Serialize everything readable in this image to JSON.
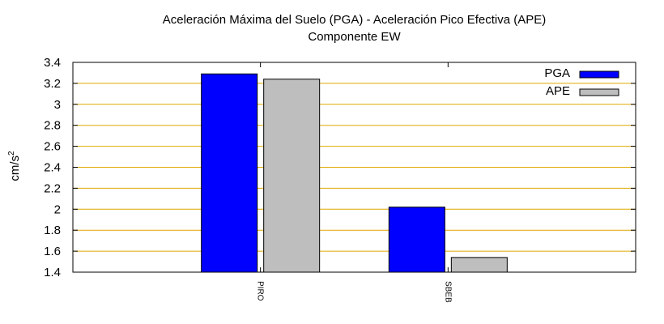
{
  "chart_data": {
    "type": "bar",
    "title": "Aceleración Máxima del Suelo (PGA) -  Aceleración Pico Efectiva (APE)",
    "subtitle": "Componente EW",
    "ylabel": "cm/s",
    "ylabel_superscript": "2",
    "xlabel": "",
    "categories": [
      "PIRO",
      "SBEB"
    ],
    "series": [
      {
        "name": "PGA",
        "values": [
          3.29,
          2.02
        ],
        "color": "#0000ff"
      },
      {
        "name": "APE",
        "values": [
          3.24,
          1.54
        ],
        "color": "#bebebe"
      }
    ],
    "ylim": [
      1.4,
      3.4
    ],
    "yticks": [
      "1.4",
      "1.6",
      "1.8",
      "2",
      "2.2",
      "2.4",
      "2.6",
      "2.8",
      "3",
      "3.2",
      "3.4"
    ],
    "grid": true,
    "grid_color": "#e0a800",
    "legend_position": "top-right"
  }
}
